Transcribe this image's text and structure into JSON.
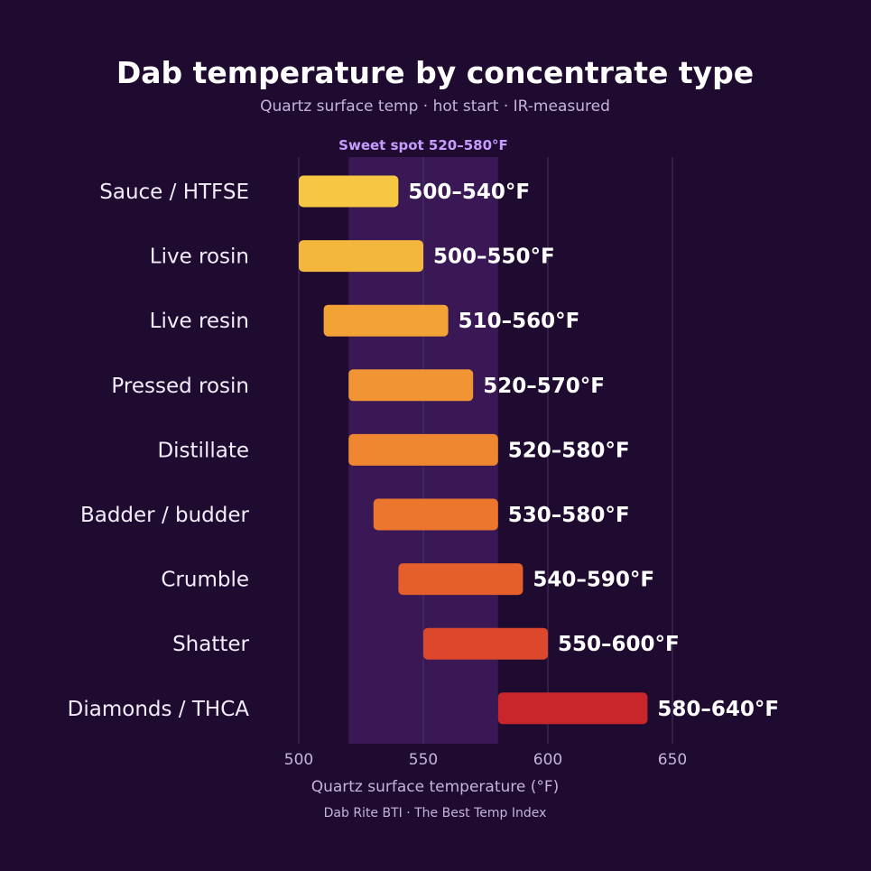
{
  "chart_data": {
    "type": "bar",
    "orientation": "horizontal-range",
    "title": "Dab temperature by concentrate type",
    "subtitle": "Quartz surface temp · hot start · IR-measured",
    "xlabel": "Quartz surface temperature (°F)",
    "source": "Dab Rite BTI · The Best Temp Index",
    "xlim": [
      500,
      700
    ],
    "xticks": [
      500,
      550,
      600,
      650
    ],
    "grid": true,
    "highlight_band": {
      "label": "Sweet spot 520–580°F",
      "from": 520,
      "to": 580,
      "color": "#3a1856"
    },
    "categories": [
      "Sauce / HTFSE",
      "Live rosin",
      "Live resin",
      "Pressed rosin",
      "Distillate",
      "Badder / budder",
      "Crumble",
      "Shatter",
      "Diamonds / THCA"
    ],
    "ranges": [
      {
        "low": 500,
        "high": 540,
        "label": "500–540°F",
        "color": "#f7c744"
      },
      {
        "low": 500,
        "high": 550,
        "label": "500–550°F",
        "color": "#f4b73e"
      },
      {
        "low": 510,
        "high": 560,
        "label": "510–560°F",
        "color": "#f3a236"
      },
      {
        "low": 520,
        "high": 570,
        "label": "520–570°F",
        "color": "#f19433"
      },
      {
        "low": 520,
        "high": 580,
        "label": "520–580°F",
        "color": "#ef8730"
      },
      {
        "low": 530,
        "high": 580,
        "label": "530–580°F",
        "color": "#ec762e"
      },
      {
        "low": 540,
        "high": 590,
        "label": "540–590°F",
        "color": "#e55f2b"
      },
      {
        "low": 550,
        "high": 600,
        "label": "550–600°F",
        "color": "#dd472c"
      },
      {
        "low": 580,
        "high": 640,
        "label": "580–640°F",
        "color": "#c9262c"
      }
    ]
  }
}
